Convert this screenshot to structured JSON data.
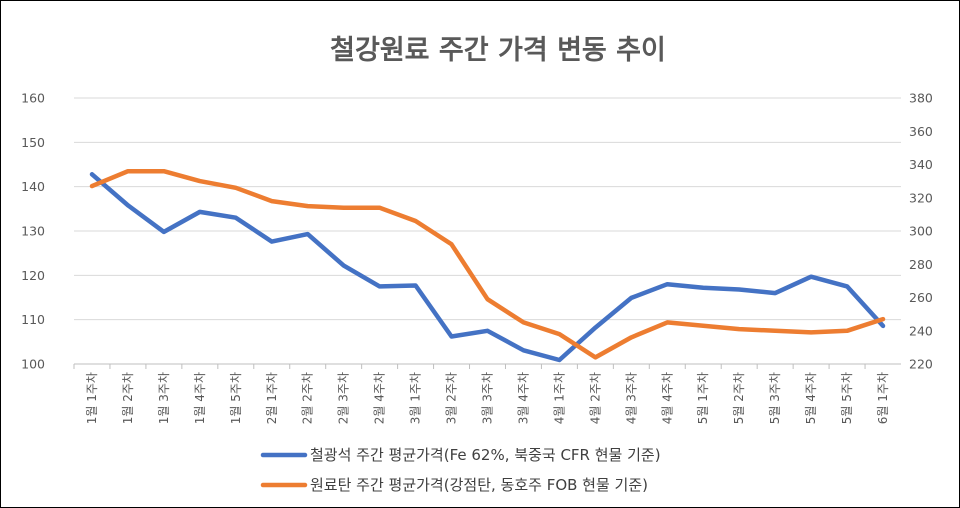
{
  "chart_data": {
    "type": "line",
    "title": "철강원료 주간 가격 변동 추이",
    "categories": [
      "1월 1주차",
      "1월 2주차",
      "1월 3주차",
      "1월 4주차",
      "1월 5주차",
      "2월 1주차",
      "2월 2주차",
      "2월 3주차",
      "2월 4주차",
      "3월 1주차",
      "3월 2주차",
      "3월 3주차",
      "3월 4주차",
      "4월 1주차",
      "4월 2주차",
      "4월 3주차",
      "4월 4주차",
      "5월 1주차",
      "5월 2주차",
      "5월 3주차",
      "5월 4주차",
      "5월 5주차",
      "6월 1주차"
    ],
    "y_left": {
      "min": 100,
      "max": 160,
      "ticks": [
        100,
        110,
        120,
        130,
        140,
        150,
        160
      ]
    },
    "y_right": {
      "min": 220,
      "max": 380,
      "ticks": [
        220,
        240,
        260,
        280,
        300,
        320,
        340,
        360,
        380
      ]
    },
    "grid": true,
    "legend_position": "bottom",
    "series": [
      {
        "name": "철광석 주간 평균가격(Fe 62%, 북중국 CFR 현물 기준)",
        "axis": "left",
        "color": "#4472c4",
        "values": [
          142.8,
          135.8,
          129.8,
          134.3,
          133.0,
          127.6,
          129.3,
          122.2,
          117.5,
          117.7,
          106.2,
          107.5,
          103.1,
          100.9,
          108.2,
          114.9,
          118.0,
          117.2,
          116.8,
          116.0,
          119.7,
          117.5,
          108.6
        ]
      },
      {
        "name": "원료탄 주간 평균가격(강점탄, 동호주 FOB 현물 기준)",
        "axis": "right",
        "color": "#ed7d31",
        "values": [
          327,
          336,
          336,
          330,
          326,
          318,
          315,
          314,
          314,
          306,
          292,
          259,
          245,
          238,
          224,
          236,
          245,
          243,
          241,
          240,
          239,
          240,
          247
        ]
      }
    ]
  }
}
